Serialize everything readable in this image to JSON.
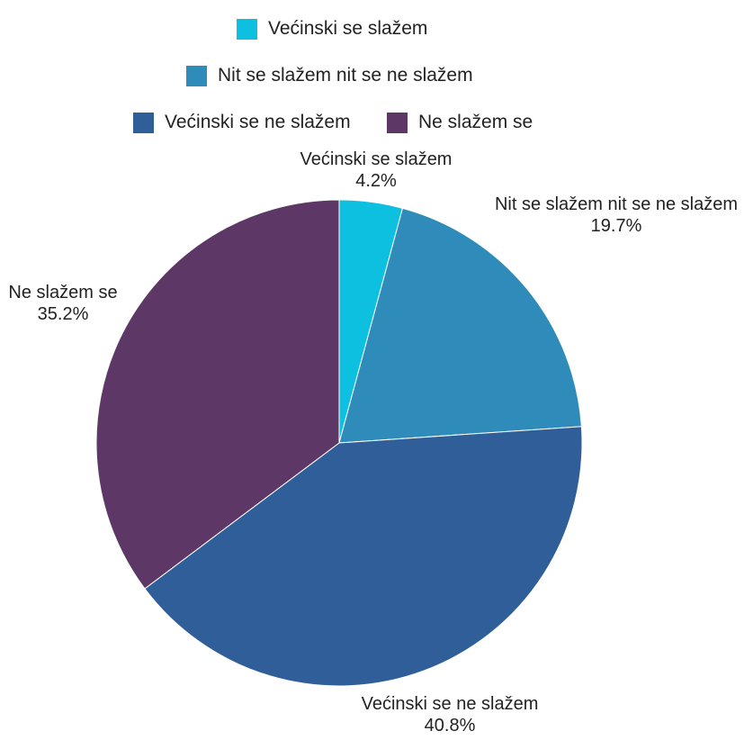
{
  "chart_data": {
    "type": "pie",
    "title": "",
    "categories": [
      "Većinski se slažem",
      "Nit se slažem nit se ne slažem",
      "Većinski se ne slažem",
      "Ne slažem se"
    ],
    "values": [
      4.2,
      19.7,
      40.8,
      35.2
    ],
    "value_labels": [
      "4.2%",
      "19.7%",
      "40.8%",
      "35.2%"
    ],
    "colors": [
      "#0dc0e0",
      "#2e8bba",
      "#2f5e99",
      "#5d3866"
    ],
    "start_angle": "12 o'clock",
    "direction": "clockwise",
    "legend_position": "top"
  }
}
